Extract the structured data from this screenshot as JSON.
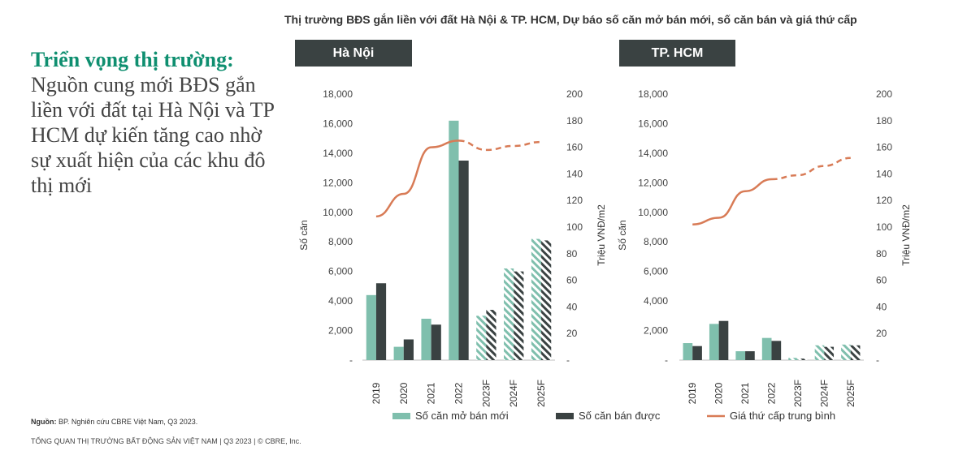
{
  "main_title": "Thị trường BĐS gắn liền với đất Hà Nội & TP. HCM, Dự báo số căn mở bán mới, số căn bán và giá thứ cấp",
  "heading": {
    "accent": "Triển vọng thị trường:",
    "body": "Nguồn cung mới BĐS gắn liền với đất tại Hà Nội và TP HCM dự kiến tăng cao nhờ sự xuất hiện của các khu đô thị mới"
  },
  "source": {
    "label": "Nguồn:",
    "text": "BP. Nghiên cứu CBRE Việt Nam, Q3 2023."
  },
  "footer": "TỔNG QUAN THỊ TRƯỜNG BẤT ĐỘNG SẢN VIỆT NAM | Q3 2023 | © CBRE, Inc.",
  "colors": {
    "new_supply": "#7fbfad",
    "sold": "#3a4242",
    "price": "#d87b56",
    "panel": "#3a4242"
  },
  "legend": {
    "new_supply": "Số căn mở bán mới",
    "sold": "Số căn bán được",
    "price": "Giá thứ cấp trung bình"
  },
  "chart_data": [
    {
      "type": "bar",
      "panel_title": "Hà Nội",
      "categories": [
        "2019",
        "2020",
        "2021",
        "2022",
        "2023F",
        "2024F",
        "2025F"
      ],
      "forecast_from_index": 4,
      "ylabel": "Số căn",
      "y2label": "Triệu VNĐ/m2",
      "ylim": [
        0,
        18000
      ],
      "y_ticks": [
        "-",
        "2,000",
        "4,000",
        "6,000",
        "8,000",
        "10,000",
        "12,000",
        "14,000",
        "16,000",
        "18,000"
      ],
      "y2lim": [
        0,
        200
      ],
      "y2_ticks": [
        "-",
        "20",
        "40",
        "60",
        "80",
        "100",
        "120",
        "140",
        "160",
        "180",
        "200"
      ],
      "series": [
        {
          "name": "Số căn mở bán mới",
          "type": "bar",
          "values": [
            4400,
            900,
            2800,
            16200,
            3000,
            6200,
            8200
          ]
        },
        {
          "name": "Số căn bán được",
          "type": "bar",
          "values": [
            5200,
            1400,
            2400,
            13500,
            3400,
            6000,
            8100
          ]
        },
        {
          "name": "Giá thứ cấp trung bình",
          "type": "line",
          "axis": "right",
          "values": [
            108,
            125,
            160,
            165,
            158,
            161,
            164
          ]
        }
      ]
    },
    {
      "type": "bar",
      "panel_title": "TP. HCM",
      "categories": [
        "2019",
        "2020",
        "2021",
        "2022",
        "2023F",
        "2024F",
        "2025F"
      ],
      "forecast_from_index": 4,
      "ylabel": "Số căn",
      "y2label": "Triệu VNĐ/m2",
      "ylim": [
        0,
        18000
      ],
      "y_ticks": [
        "-",
        "2,000",
        "4,000",
        "6,000",
        "8,000",
        "10,000",
        "12,000",
        "14,000",
        "16,000",
        "18,000"
      ],
      "y2lim": [
        0,
        200
      ],
      "y2_ticks": [
        "-",
        "20",
        "40",
        "60",
        "80",
        "100",
        "120",
        "140",
        "160",
        "180",
        "200"
      ],
      "series": [
        {
          "name": "Số căn mở bán mới",
          "type": "bar",
          "values": [
            1150,
            2450,
            600,
            1500,
            150,
            1000,
            1050
          ]
        },
        {
          "name": "Số căn bán được",
          "type": "bar",
          "values": [
            950,
            2650,
            600,
            1300,
            100,
            900,
            1000
          ]
        },
        {
          "name": "Giá thứ cấp trung bình",
          "type": "line",
          "axis": "right",
          "values": [
            102,
            107,
            127,
            136,
            139,
            146,
            152
          ]
        }
      ]
    }
  ]
}
